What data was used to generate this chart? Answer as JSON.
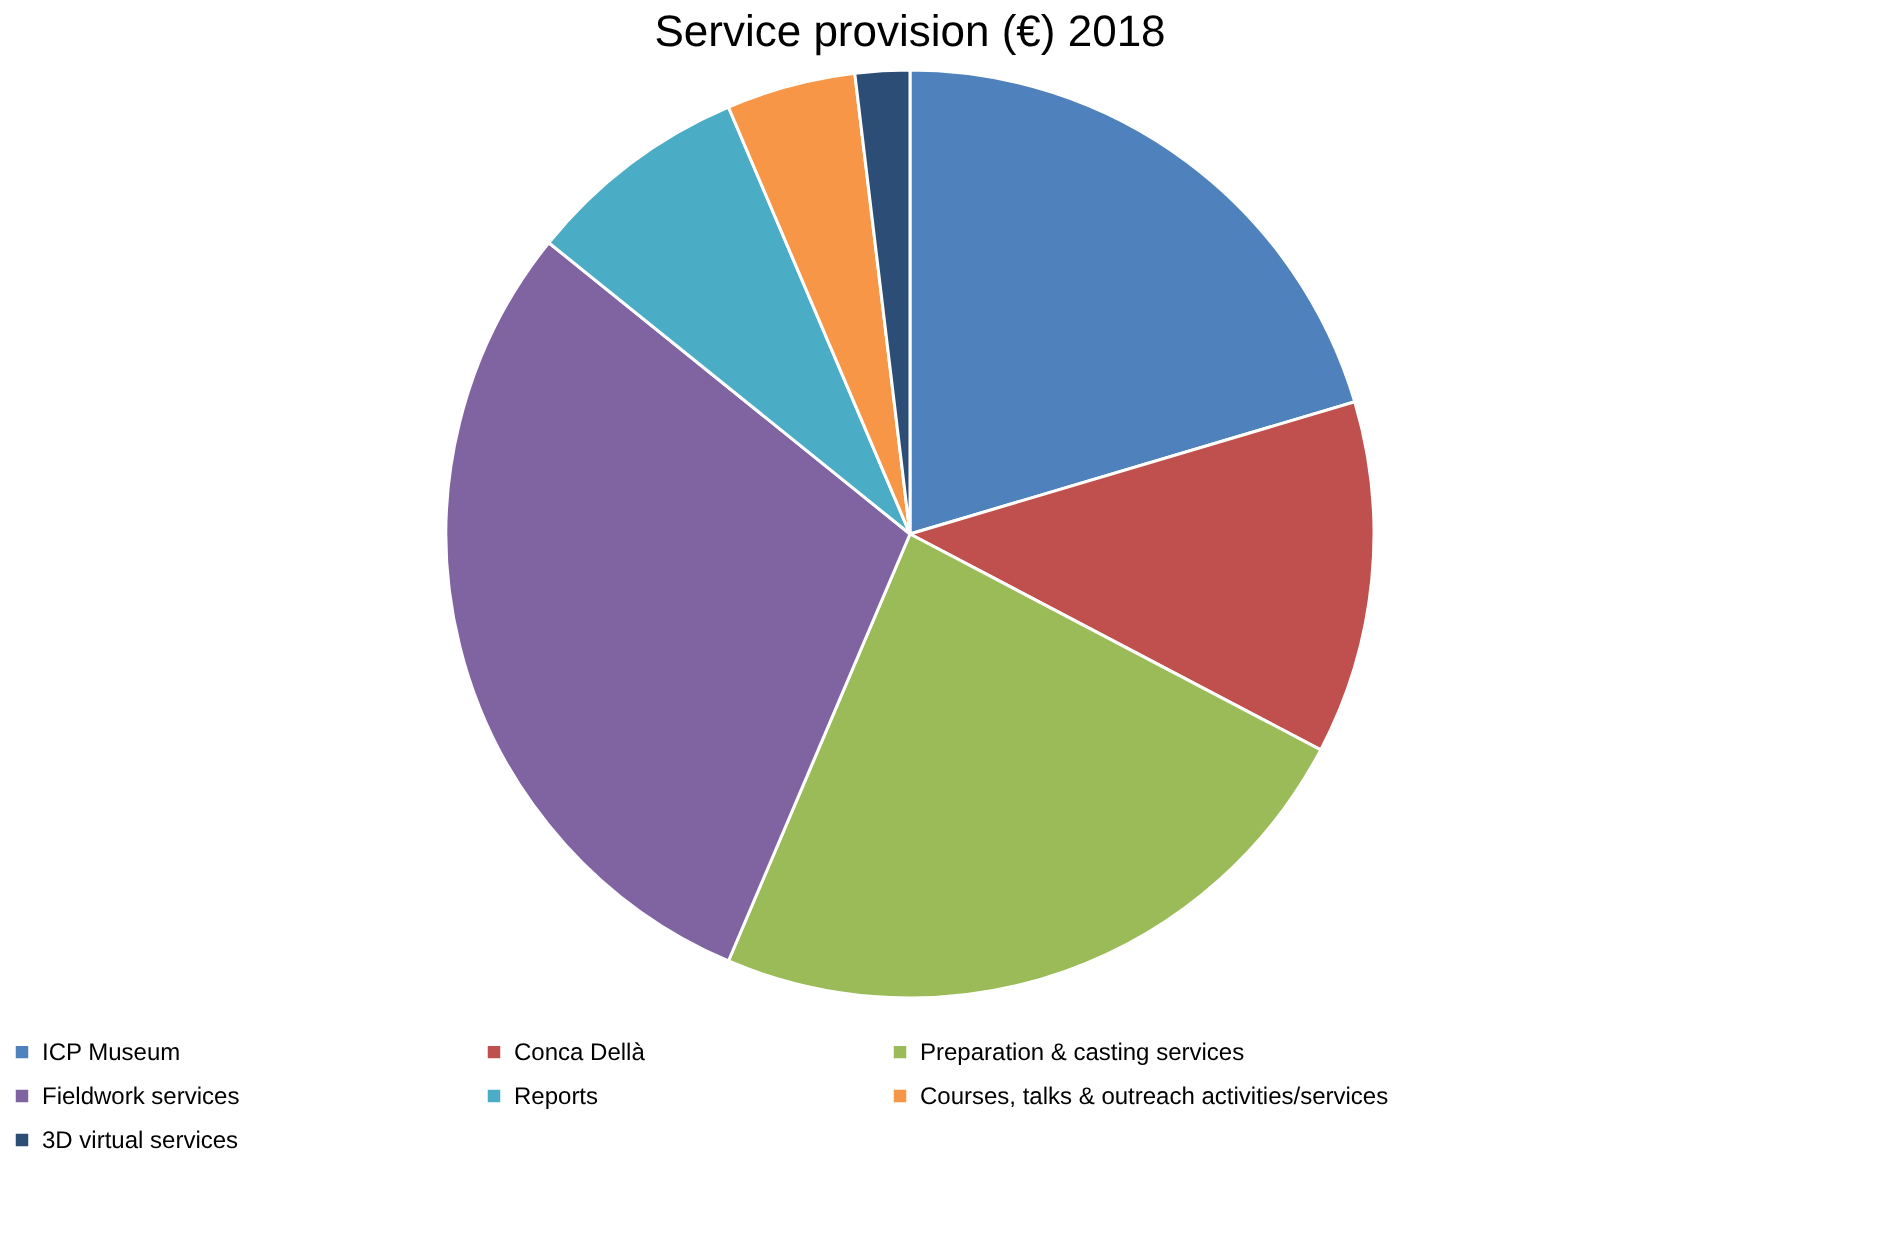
{
  "chart_data": {
    "type": "pie",
    "title": "Service provision (€) 2018",
    "categories": [
      "ICP Museum",
      "Conca Dellà",
      "Preparation & casting services",
      "Fieldwork services",
      "Reports",
      "Courses, talks & outreach activities/services",
      "3D virtual services"
    ],
    "values": [
      20.4,
      12.3,
      23.7,
      29.4,
      7.8,
      4.5,
      1.9
    ],
    "colors": [
      "#4f81bd",
      "#c0504d",
      "#9bbb59",
      "#8064a2",
      "#4bacc6",
      "#f79646",
      "#2c4d75"
    ],
    "legend": "bottom"
  }
}
